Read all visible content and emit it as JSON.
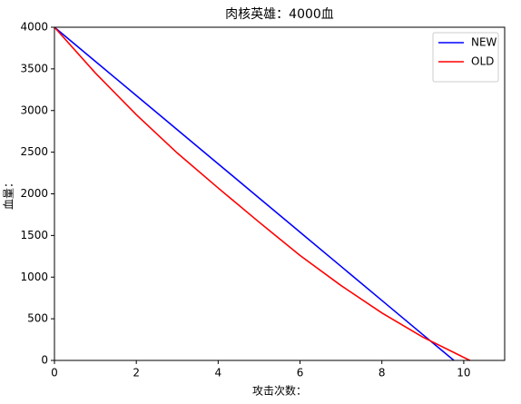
{
  "chart_data": {
    "type": "line",
    "title": "肉核英雄：4000血",
    "xlabel": "攻击次数：",
    "ylabel": "血量：",
    "xlim": [
      0,
      11
    ],
    "xticks": [
      0,
      2,
      4,
      6,
      8,
      10
    ],
    "ylim": [
      0,
      4000
    ],
    "yticks": [
      0,
      500,
      1000,
      1500,
      2000,
      2500,
      3000,
      3500,
      4000
    ],
    "grid": false,
    "legend": "upper right",
    "series": [
      {
        "name": "NEW",
        "color": "#0000ff",
        "x": [
          0,
          1,
          2,
          3,
          4,
          5,
          6,
          7,
          8,
          9,
          9.76
        ],
        "values": [
          4000,
          3590,
          3180,
          2770,
          2360,
          1950,
          1540,
          1130,
          720,
          310,
          0
        ]
      },
      {
        "name": "OLD",
        "color": "#ff0000",
        "x": [
          0,
          1,
          2,
          3,
          4,
          5,
          6,
          7,
          8,
          9,
          10.15
        ],
        "values": [
          4000,
          3450,
          2950,
          2490,
          2070,
          1660,
          1260,
          900,
          570,
          280,
          0
        ]
      }
    ]
  }
}
